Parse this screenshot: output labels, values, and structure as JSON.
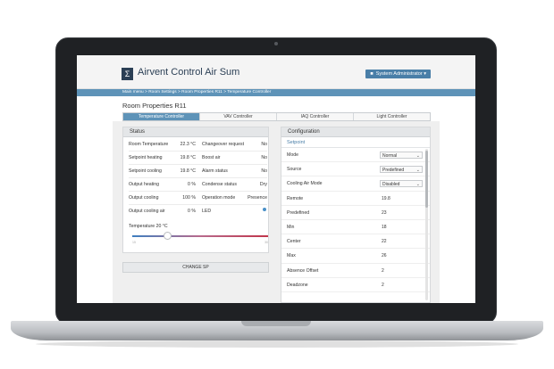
{
  "app": {
    "title": "Airvent Control Air Sum",
    "logo_glyph": "Σ",
    "user_label": "System Administrator",
    "user_icon": "user-icon"
  },
  "breadcrumb": "Main menu > Room Settings > Room Properties R11 > Temperature Controller",
  "page_title": "Room Properties R11",
  "tabs": [
    {
      "label": "Temperature Controller",
      "active": true
    },
    {
      "label": "VAV Controller",
      "active": false
    },
    {
      "label": "IAQ Controller",
      "active": false
    },
    {
      "label": "Light Controller",
      "active": false
    }
  ],
  "status": {
    "title": "Status",
    "rows": [
      {
        "label": "Room Temperature",
        "value": "22.3 °C",
        "label2": "Changeover request",
        "value2": "No"
      },
      {
        "label": "Setpoint heating",
        "value": "19.8 °C",
        "label2": "Boost air",
        "value2": "No"
      },
      {
        "label": "Setpoint cooling",
        "value": "19.8 °C",
        "label2": "Alarm status",
        "value2": "No"
      },
      {
        "label": "Output heating",
        "value": "0 %",
        "label2": "Condense status",
        "value2": "Dry"
      },
      {
        "label": "Output cooling",
        "value": "100 %",
        "label2": "Operation mode",
        "value2": "Presence"
      },
      {
        "label": "Output cooling air",
        "value": "0 %",
        "label2": "LED",
        "value2": ""
      }
    ],
    "temperature_label": "Temperature",
    "temperature_value": "20 °C",
    "slider_min": "15",
    "slider_max": "30",
    "change_button": "CHANGE SP",
    "led_color": "#4a90c8"
  },
  "configuration": {
    "title": "Configuration",
    "section": "Setpoint",
    "rows": [
      {
        "label": "Mode",
        "value": "Normal",
        "type": "select"
      },
      {
        "label": "Source",
        "value": "Predefined",
        "type": "select"
      },
      {
        "label": "Cooling Air Mode",
        "value": "Disabled",
        "type": "select"
      },
      {
        "label": "Remote",
        "value": "19.8",
        "type": "text"
      },
      {
        "label": "Predefined",
        "value": "23",
        "type": "text"
      },
      {
        "label": "Min",
        "value": "18",
        "type": "text"
      },
      {
        "label": "Center",
        "value": "22",
        "type": "text"
      },
      {
        "label": "Max",
        "value": "26",
        "type": "text"
      },
      {
        "label": "Absence Offset",
        "value": "2",
        "type": "text"
      },
      {
        "label": "Deadzone",
        "value": "2",
        "type": "text"
      }
    ]
  },
  "colors": {
    "accent": "#5e93b8",
    "brand_dark": "#2b3f55"
  }
}
